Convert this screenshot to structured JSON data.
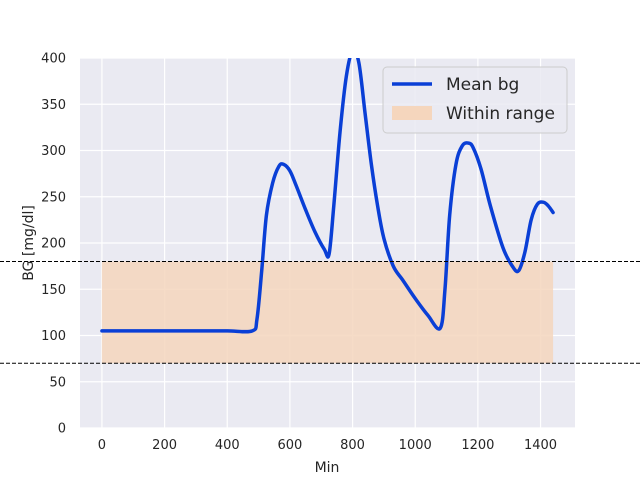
{
  "chart_data": {
    "type": "line",
    "title": "",
    "xlabel": "Min",
    "ylabel": "BG [mg/dl]",
    "xlim": [
      -70,
      1510
    ],
    "ylim": [
      0,
      400
    ],
    "xticks": [
      0,
      200,
      400,
      600,
      800,
      1000,
      1200,
      1400
    ],
    "yticks": [
      0,
      50,
      100,
      150,
      200,
      250,
      300,
      350,
      400
    ],
    "grid": true,
    "legend_position": "top-right",
    "series": [
      {
        "name": "Mean bg",
        "color": "#0a3fd6",
        "x": [
          0,
          100,
          200,
          300,
          400,
          480,
          495,
          510,
          525,
          545,
          565,
          580,
          600,
          620,
          650,
          680,
          710,
          725,
          740,
          760,
          780,
          800,
          820,
          840,
          860,
          880,
          900,
          930,
          960,
          1000,
          1040,
          1080,
          1095,
          1110,
          1130,
          1150,
          1170,
          1185,
          1210,
          1240,
          1280,
          1310,
          1330,
          1350,
          1370,
          1390,
          1410,
          1425,
          1440
        ],
        "y": [
          105,
          105,
          105,
          105,
          105,
          105,
          118,
          170,
          230,
          265,
          283,
          285,
          278,
          262,
          236,
          212,
          193,
          188,
          240,
          320,
          380,
          408,
          395,
          340,
          285,
          240,
          205,
          175,
          160,
          140,
          122,
          108,
          150,
          230,
          285,
          305,
          308,
          303,
          280,
          240,
          195,
          175,
          170,
          190,
          225,
          242,
          244,
          240,
          233
        ]
      }
    ],
    "band": {
      "name": "Within range",
      "color": "#f5d6bd",
      "lower": 70,
      "upper": 180,
      "x_start": 0,
      "x_end": 1440
    },
    "reference_lines": [
      70,
      180
    ]
  }
}
